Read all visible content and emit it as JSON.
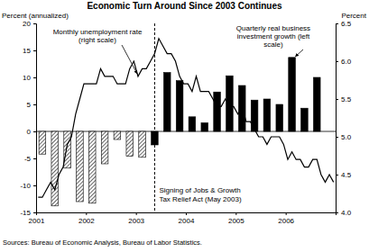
{
  "chart_data": {
    "type": "bar",
    "title": "Economic Turn Around Since 2003 Continues",
    "y_label": "Percent (annualized)",
    "y2_label": "Percent",
    "source": "Sources: Bureau of Economic Analysis, Bureau of Labor Statistics.",
    "xlim": [
      2001,
      2007
    ],
    "xticks": [
      2001,
      2002,
      2003,
      2004,
      2005,
      2006
    ],
    "ylim": [
      -15,
      20
    ],
    "yticks": [
      -15,
      -10,
      -5,
      0,
      5,
      10,
      15,
      20
    ],
    "y2lim": [
      4,
      6.5
    ],
    "y2ticks": [
      {
        "value": 4,
        "label": "4.0"
      },
      4.5,
      {
        "value": 5,
        "label": "5.0"
      },
      5.5,
      {
        "value": 6,
        "label": "6.0"
      },
      6.5
    ],
    "grid": false,
    "event": {
      "x": 2003.375,
      "label": "Signing of Jobs & Growth Tax Relief Act (May 2003)"
    },
    "series": [
      {
        "name": "Quarterly real business investment growth (left scale)",
        "type": "bar",
        "color": "#000000",
        "x": [
          2001.125,
          2001.375,
          2001.625,
          2001.875,
          2002.125,
          2002.375,
          2002.625,
          2002.875,
          2003.125,
          2003.375,
          2003.625,
          2003.875,
          2004.125,
          2004.375,
          2004.625,
          2004.875,
          2005.125,
          2005.375,
          2005.625,
          2005.875,
          2006.125,
          2006.375,
          2006.625
        ],
        "values": [
          -4.2,
          -13.8,
          -6.8,
          -13.0,
          -13.3,
          -6.0,
          -1.5,
          -4.6,
          -4.8,
          -2.5,
          10.9,
          9.4,
          2.7,
          1.6,
          7.3,
          10.3,
          8.5,
          5.8,
          6.0,
          5.0,
          13.7,
          4.3,
          10.0
        ]
      },
      {
        "name": "Monthly unemployment rate (right scale)",
        "type": "line",
        "axis": "y2",
        "color": "#000000",
        "x": [
          2001.042,
          2001.125,
          2001.208,
          2001.292,
          2001.375,
          2001.458,
          2001.542,
          2001.625,
          2001.708,
          2001.792,
          2001.875,
          2001.958,
          2002.042,
          2002.125,
          2002.208,
          2002.292,
          2002.375,
          2002.458,
          2002.542,
          2002.625,
          2002.708,
          2002.792,
          2002.875,
          2002.958,
          2003.042,
          2003.125,
          2003.208,
          2003.292,
          2003.375,
          2003.458,
          2003.542,
          2003.625,
          2003.708,
          2003.792,
          2003.875,
          2003.958,
          2004.042,
          2004.125,
          2004.208,
          2004.292,
          2004.375,
          2004.458,
          2004.542,
          2004.625,
          2004.708,
          2004.792,
          2004.875,
          2004.958,
          2005.042,
          2005.125,
          2005.208,
          2005.292,
          2005.375,
          2005.458,
          2005.542,
          2005.625,
          2005.708,
          2005.792,
          2005.875,
          2005.958,
          2006.042,
          2006.125,
          2006.208,
          2006.292,
          2006.375,
          2006.458,
          2006.542,
          2006.625,
          2006.708,
          2006.792,
          2006.875,
          2006.958
        ],
        "values": [
          4.2,
          4.2,
          4.3,
          4.4,
          4.3,
          4.5,
          4.6,
          4.9,
          5.0,
          5.3,
          5.5,
          5.7,
          5.7,
          5.7,
          5.7,
          5.9,
          5.8,
          5.8,
          5.8,
          5.7,
          5.7,
          5.7,
          5.9,
          6.0,
          5.8,
          5.9,
          5.9,
          6.0,
          6.1,
          6.3,
          6.2,
          6.1,
          6.1,
          6.0,
          5.8,
          5.7,
          5.7,
          5.6,
          5.8,
          5.6,
          5.6,
          5.6,
          5.5,
          5.4,
          5.4,
          5.5,
          5.4,
          5.4,
          5.3,
          5.4,
          5.2,
          5.2,
          5.1,
          5.0,
          5.0,
          4.9,
          5.0,
          5.0,
          5.0,
          4.9,
          4.7,
          4.8,
          4.7,
          4.7,
          4.6,
          4.6,
          4.7,
          4.7,
          4.5,
          4.4,
          4.5,
          4.4
        ]
      }
    ]
  }
}
